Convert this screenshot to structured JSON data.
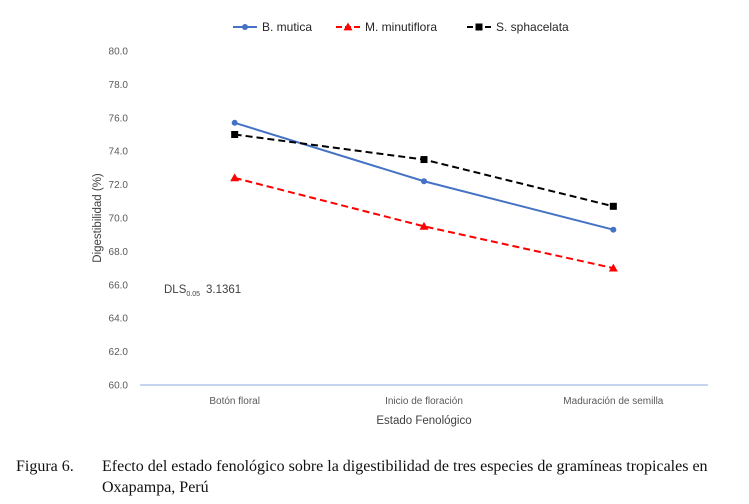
{
  "chart_data": {
    "type": "line",
    "categories": [
      "Botón floral",
      "Inicio de floración",
      "Maduración de semilla"
    ],
    "xlabel": "Estado Fenológico",
    "ylabel": "Digestibilidad (%)",
    "ylim": [
      60,
      80
    ],
    "yticks": [
      "60.0",
      "62.0",
      "64.0",
      "66.0",
      "68.0",
      "70.0",
      "72.0",
      "74.0",
      "76.0",
      "78.0",
      "80.0"
    ],
    "grid": false,
    "legend_position": "top",
    "series": [
      {
        "name": "B. mutica",
        "values": [
          75.7,
          72.2,
          69.3
        ],
        "color": "#4472c4",
        "dash": "solid",
        "marker": "circle"
      },
      {
        "name": "M. minutiflora",
        "values": [
          72.4,
          69.5,
          67.0
        ],
        "color": "#ff0000",
        "dash": "dashed",
        "marker": "triangle"
      },
      {
        "name": "S. sphacelata",
        "values": [
          75.0,
          73.5,
          70.7
        ],
        "color": "#000000",
        "dash": "dashed",
        "marker": "square"
      }
    ],
    "annotation": {
      "main": "DLS",
      "sub": "0.05",
      "value": "3.1361"
    }
  },
  "caption": {
    "label": "Figura 6.",
    "text": "Efecto del estado fenológico sobre la digestibilidad de tres especies de gramíneas tropicales en Oxapampa, Perú"
  }
}
